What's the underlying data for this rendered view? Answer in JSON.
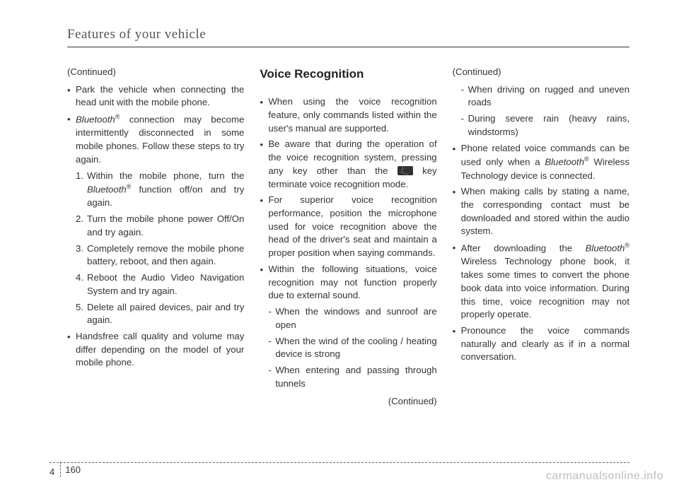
{
  "header": {
    "section_title": "Features of your vehicle"
  },
  "col1": {
    "continued": "(Continued)",
    "b1": "Park the vehicle when connecting the head unit with the mobile phone.",
    "b2_pre": "Bluetooth",
    "b2_sup": "®",
    "b2_post": " connection may become intermittently disconnected in some mobile phones. Follow these steps to try again.",
    "n1_pre": "Within the mobile phone, turn the ",
    "n1_ital": "Bluetooth",
    "n1_sup": "®",
    "n1_post": " function off/on and try again.",
    "n2": "Turn the mobile phone power Off/On and try again.",
    "n3": "Completely remove the mobile phone battery, reboot, and then again.",
    "n4": "Reboot the Audio Video Navigation System and try again.",
    "n5": "Delete all paired devices, pair and try again.",
    "b3": "Handsfree call quality and volume may differ depending on the model of your mobile phone."
  },
  "col2": {
    "heading": "Voice Recognition",
    "b1": "When using the voice recognition feature, only commands listed within the user's manual are supported.",
    "b2_pre": "Be aware that during the operation of the voice recognition system, pressing any key other than the ",
    "b2_post": " key terminate voice recognition mode.",
    "b3": "For superior voice recognition performance, position the microphone used for voice recognition above the head of the driver's seat and maintain a proper position when saying commands.",
    "b4": "Within the following situations, voice recognition may not function properly due to external sound.",
    "d1": "When the windows and sunroof are open",
    "d2": "When the wind of the cooling / heating device is strong",
    "d3": "When entering and passing through tunnels",
    "continued": "(Continued)"
  },
  "col3": {
    "continued": "(Continued)",
    "d1": "When driving on rugged and uneven roads",
    "d2": "During severe rain (heavy rains, windstorms)",
    "b1_pre": "Phone related voice commands can be used only when a ",
    "b1_ital": "Bluetooth",
    "b1_sup": "®",
    "b1_post": " Wireless Technology device is connected.",
    "b2": "When making calls by stating a name, the corresponding contact must be downloaded and stored within the audio system.",
    "b3_pre": "After downloading the ",
    "b3_ital": "Bluetooth",
    "b3_sup": "®",
    "b3_post": " Wireless Technology phone book, it takes some times to convert the phone book data into voice information. During this time, voice recognition may not properly operate.",
    "b4": "Pronounce the voice commands naturally and clearly as if in a normal conversation."
  },
  "footer": {
    "chapter": "4",
    "page": "160",
    "watermark": "carmanualsonline.info"
  },
  "style": {
    "background": "#ffffff",
    "text_color": "#333333",
    "rule_color": "#333333",
    "dash_color": "#666666",
    "watermark_color": "#bdbdbd",
    "body_fontsize": 13.2,
    "heading_fontsize": 17,
    "section_fontsize": 19
  }
}
